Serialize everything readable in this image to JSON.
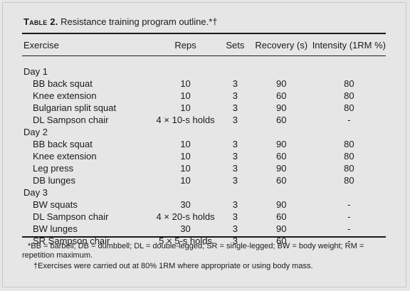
{
  "table": {
    "label": "Table 2.",
    "caption": "Resistance training program outline.*†",
    "columns": [
      "Exercise",
      "Reps",
      "Sets",
      "Recovery (s)",
      "Intensity (1RM %)"
    ],
    "days": [
      {
        "name": "Day 1",
        "rows": [
          {
            "exercise": "BB back squat",
            "reps": "10",
            "sets": "3",
            "recovery": "90",
            "intensity": "80"
          },
          {
            "exercise": "Knee extension",
            "reps": "10",
            "sets": "3",
            "recovery": "60",
            "intensity": "80"
          },
          {
            "exercise": "Bulgarian split squat",
            "reps": "10",
            "sets": "3",
            "recovery": "90",
            "intensity": "80"
          },
          {
            "exercise": "DL Sampson chair",
            "reps": "4 × 10-s holds",
            "sets": "3",
            "recovery": "60",
            "intensity": "-"
          }
        ]
      },
      {
        "name": "Day 2",
        "rows": [
          {
            "exercise": "BB back squat",
            "reps": "10",
            "sets": "3",
            "recovery": "90",
            "intensity": "80"
          },
          {
            "exercise": "Knee extension",
            "reps": "10",
            "sets": "3",
            "recovery": "60",
            "intensity": "80"
          },
          {
            "exercise": "Leg press",
            "reps": "10",
            "sets": "3",
            "recovery": "90",
            "intensity": "80"
          },
          {
            "exercise": "DB lunges",
            "reps": "10",
            "sets": "3",
            "recovery": "60",
            "intensity": "80"
          }
        ]
      },
      {
        "name": "Day 3",
        "rows": [
          {
            "exercise": "BW squats",
            "reps": "30",
            "sets": "3",
            "recovery": "90",
            "intensity": "-"
          },
          {
            "exercise": "DL Sampson chair",
            "reps": "4 × 20-s holds",
            "sets": "3",
            "recovery": "60",
            "intensity": "-"
          },
          {
            "exercise": "BW lunges",
            "reps": "30",
            "sets": "3",
            "recovery": "90",
            "intensity": "-"
          },
          {
            "exercise": "SR Sampson chair",
            "reps": "5 × 5-s holds",
            "sets": "3",
            "recovery": "60",
            "intensity": "-"
          }
        ]
      }
    ],
    "footnotes": [
      "*BB = barbell; DB = dumbbell; DL = double-legged; SR = single-legged; BW = body weight; RM = repetition maximum.",
      "†Exercises were carried out at 80% 1RM where appropriate or using body mass."
    ]
  }
}
